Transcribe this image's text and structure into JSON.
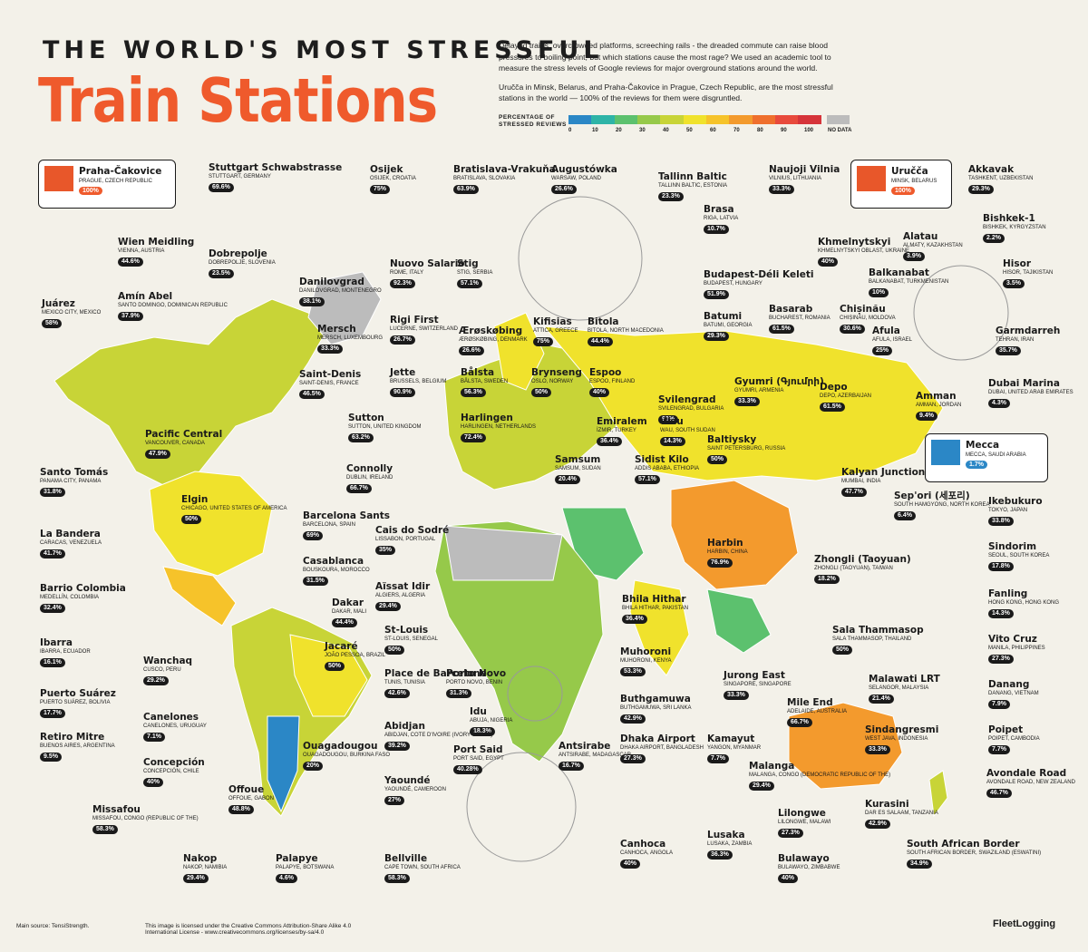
{
  "header": {
    "title_top": "THE WORLD'S MOST STRESSFUL",
    "title_main": "Train Stations",
    "intro1": "Delayed trains, overcrowded platforms, screeching rails - the dreaded commute can raise blood pressures to boiling point, but which stations cause the most rage? We used an academic tool to measure the stress levels of Google reviews for major overground stations around the world.",
    "intro2": "Uručča in Minsk, Belarus, and Praha-Čakovice in Prague, Czech Republic, are the most stressful stations in the world — 100% of the reviews for them were disgruntled."
  },
  "legend": {
    "label": "PERCENTAGE OF STRESSED REVIEWS",
    "ticks": [
      "0",
      "10",
      "20",
      "30",
      "40",
      "50",
      "60",
      "70",
      "80",
      "90",
      "100",
      "NO DATA"
    ],
    "colors": [
      "#2b87c6",
      "#2eb4a7",
      "#5cc16e",
      "#96c94a",
      "#c8d437",
      "#f0e22c",
      "#f6c32a",
      "#f39a2d",
      "#ef6f2d",
      "#e84a3c",
      "#d6343a",
      "#bcbcbc"
    ]
  },
  "highlights": [
    {
      "name": "Praha-Čakovice",
      "loc": "PRAGUE, CZECH REPUBLIC",
      "value": "100%"
    },
    {
      "name": "Uručča",
      "loc": "MINSK, BELARUS",
      "value": "100%"
    },
    {
      "name": "Mecca",
      "loc": "MECCA, SAUDI ARABIA",
      "value": "1.7%"
    }
  ],
  "stations": [
    {
      "name": "Stuttgart Schwabstrasse",
      "loc": "STUTTGART, GERMANY",
      "value": "69.6%"
    },
    {
      "name": "Osijek",
      "loc": "OSIJEK, CROATIA",
      "value": "75%"
    },
    {
      "name": "Bratislava-Vrakuňa",
      "loc": "BRATISLAVA, SLOVAKIA",
      "value": "63.9%"
    },
    {
      "name": "Augustówka",
      "loc": "WARSAW, POLAND",
      "value": "26.6%"
    },
    {
      "name": "Tallinn Baltic",
      "loc": "TALLINN BALTIC, ESTONIA",
      "value": "23.3%"
    },
    {
      "name": "Naujoji Vilnia",
      "loc": "VILNIUS, LITHUANIA",
      "value": "33.3%"
    },
    {
      "name": "Akkavak",
      "loc": "TASHKENT, UZBEKISTAN",
      "value": "29.3%"
    },
    {
      "name": "Brasa",
      "loc": "RIGA, LATVIA",
      "value": "10.7%"
    },
    {
      "name": "Bishkek-1",
      "loc": "BISHKEK, KYRGYZSTAN",
      "value": "2.2%"
    },
    {
      "name": "Wien Meidling",
      "loc": "VIENNA, AUSTRIA",
      "value": "44.6%"
    },
    {
      "name": "Dobrepolje",
      "loc": "DOBREPOLJE, SLOVENIA",
      "value": "23.5%"
    },
    {
      "name": "Nuovo Salario",
      "loc": "ROME, ITALY",
      "value": "92.3%"
    },
    {
      "name": "Stig",
      "loc": "STIG, SERBIA",
      "value": "57.1%"
    },
    {
      "name": "Khmelnytskyi",
      "loc": "KHMELNYTSKYI OBLAST, UKRAINE",
      "value": "40%"
    },
    {
      "name": "Alatau",
      "loc": "ALMATY, KAZAKHSTAN",
      "value": "3.9%"
    },
    {
      "name": "Hisor",
      "loc": "HISOR, TAJIKISTAN",
      "value": "3.5%"
    },
    {
      "name": "Budapest-Déli Keleti",
      "loc": "BUDAPEST, HUNGARY",
      "value": "51.9%"
    },
    {
      "name": "Balkanabat",
      "loc": "BALKANABAT, TURKMENISTAN",
      "value": "10%"
    },
    {
      "name": "Juárez",
      "loc": "MEXICO CITY, MEXICO",
      "value": "58%"
    },
    {
      "name": "Amín Abel",
      "loc": "SANTO DOMINGO, DOMINICAN REPUBLIC",
      "value": "37.9%"
    },
    {
      "name": "Danilovgrad",
      "loc": "DANILOVGRAD, MONTENEGRO",
      "value": "38.1%"
    },
    {
      "name": "Basarab",
      "loc": "BUCHAREST, ROMANIA",
      "value": "61.5%"
    },
    {
      "name": "Chișinău",
      "loc": "CHIȘINĂU, MOLDOVA",
      "value": "30.6%"
    },
    {
      "name": "Garmdarreh",
      "loc": "TEHRAN, IRAN",
      "value": "35.7%"
    },
    {
      "name": "Batumi",
      "loc": "BATUMI, GEORGIA",
      "value": "29.3%"
    },
    {
      "name": "Rigi First",
      "loc": "LUCERNE, SWITZERLAND",
      "value": "26.7%"
    },
    {
      "name": "Ærøskøbing",
      "loc": "ÆRØSKØBING, DENMARK",
      "value": "26.6%"
    },
    {
      "name": "Kifisias",
      "loc": "ATTICA, GREECE",
      "value": "75%"
    },
    {
      "name": "Bitola",
      "loc": "BITOLA, NORTH MACEDONIA",
      "value": "44.4%"
    },
    {
      "name": "Afula",
      "loc": "AFULA, ISRAEL",
      "value": "25%"
    },
    {
      "name": "Mersch",
      "loc": "MERSCH, LUXEMBOURG",
      "value": "33.3%"
    },
    {
      "name": "Jette",
      "loc": "BRUSSELS, BELGIUM",
      "value": "90.9%"
    },
    {
      "name": "Bålsta",
      "loc": "BÅLSTA, SWEDEN",
      "value": "56.3%"
    },
    {
      "name": "Brynseng",
      "loc": "OSLO, NORWAY",
      "value": "50%"
    },
    {
      "name": "Espoo",
      "loc": "ESPOO, FINLAND",
      "value": "40%"
    },
    {
      "name": "Svilengrad",
      "loc": "SVILENGRAD, BULGARIA",
      "value": "90%"
    },
    {
      "name": "Gyumri (Գյումրի)",
      "loc": "GYUMRI, ARMENIA",
      "value": "33.3%"
    },
    {
      "name": "Depo",
      "loc": "DEPO, AZERBAIJAN",
      "value": "61.5%"
    },
    {
      "name": "Amman",
      "loc": "AMMAN, JORDAN",
      "value": "9.4%"
    },
    {
      "name": "Dubai Marina",
      "loc": "DUBAI, UNITED ARAB EMIRATES",
      "value": "4.3%"
    },
    {
      "name": "Saint-Denis",
      "loc": "SAINT-DENIS, FRANCE",
      "value": "46.5%"
    },
    {
      "name": "Harlingen",
      "loc": "HARLINGEN, NETHERLANDS",
      "value": "72.4%"
    },
    {
      "name": "Emiralem",
      "loc": "İZMIR, TURKEY",
      "value": "36.4%"
    },
    {
      "name": "Wau",
      "loc": "WAU, SOUTH SUDAN",
      "value": "14.3%"
    },
    {
      "name": "Baltiysky",
      "loc": "SAINT PETERSBURG, RUSSIA",
      "value": "50%"
    },
    {
      "name": "Pacific Central",
      "loc": "VANCOUVER, CANADA",
      "value": "47.9%"
    },
    {
      "name": "Sutton",
      "loc": "SUTTON, UNITED KINGDOM",
      "value": "63.2%"
    },
    {
      "name": "Samsum",
      "loc": "SAMSUM, SUDAN",
      "value": "20.4%"
    },
    {
      "name": "Sidist Kilo",
      "loc": "ADDIS ABABA, ETHIOPIA",
      "value": "57.1%"
    },
    {
      "name": "Connolly",
      "loc": "DUBLIN, IRELAND",
      "value": "66.7%"
    },
    {
      "name": "Kalyan Junction",
      "loc": "MUMBAI, INDIA",
      "value": "47.7%"
    },
    {
      "name": "Sep'ori (세포리)",
      "loc": "SOUTH HAMGYONG, NORTH KOREA",
      "value": "6.4%"
    },
    {
      "name": "Santo Tomás",
      "loc": "PANAMA CITY, PANAMA",
      "value": "31.8%"
    },
    {
      "name": "Elgin",
      "loc": "CHICAGO, UNITED STATES OF AMERICA",
      "value": "50%"
    },
    {
      "name": "Barcelona Sants",
      "loc": "BARCELONA, SPAIN",
      "value": "69%"
    },
    {
      "name": "Cais do Sodré",
      "loc": "LISSABON, PORTUGAL",
      "value": "35%"
    },
    {
      "name": "Ikebukuro",
      "loc": "TOKYO, JAPAN",
      "value": "33.8%"
    },
    {
      "name": "La Bandera",
      "loc": "CARACAS, VENEZUELA",
      "value": "41.7%"
    },
    {
      "name": "Harbin",
      "loc": "HARBIN, CHINA",
      "value": "76.9%"
    },
    {
      "name": "Sindorim",
      "loc": "SEOUL, SOUTH KOREA",
      "value": "17.8%"
    },
    {
      "name": "Casablanca",
      "loc": "BOUSKOURA, MOROCCO",
      "value": "31.5%"
    },
    {
      "name": "Zhongli (Taoyuan)",
      "loc": "ZHONGLI (TAOYUAN), TAIWAN",
      "value": "18.2%"
    },
    {
      "name": "Barrio Colombia",
      "loc": "MEDELLÍN, COLOMBIA",
      "value": "32.4%"
    },
    {
      "name": "Aïssat Idir",
      "loc": "ALGIERS, ALGERIA",
      "value": "29.4%"
    },
    {
      "name": "Fanling",
      "loc": "HONG KONG, HONG KONG",
      "value": "14.3%"
    },
    {
      "name": "Dakar",
      "loc": "DAKAR, MALI",
      "value": "44.4%"
    },
    {
      "name": "Bhila Hithar",
      "loc": "BHILA HITHAR, PAKISTAN",
      "value": "36.4%"
    },
    {
      "name": "Ibarra",
      "loc": "IBARRA, ECUADOR",
      "value": "16.1%"
    },
    {
      "name": "St-Louis",
      "loc": "ST-LOUIS, SENEGAL",
      "value": "50%"
    },
    {
      "name": "Sala Thammasop",
      "loc": "SALA THAMMASOP, THAILAND",
      "value": "50%"
    },
    {
      "name": "Vito Cruz",
      "loc": "MANILA, PHILIPPINES",
      "value": "27.3%"
    },
    {
      "name": "Wanchaq",
      "loc": "CUSCO, PERU",
      "value": "29.2%"
    },
    {
      "name": "Jacaré",
      "loc": "JOÃO PESSOA, BRAZIL",
      "value": "50%"
    },
    {
      "name": "Muhoroni",
      "loc": "MUHORONI, KENYA",
      "value": "53.3%"
    },
    {
      "name": "Jurong East",
      "loc": "SINGAPORE, SINGAPORE",
      "value": "33.3%"
    },
    {
      "name": "Malawati LRT",
      "loc": "SELANGOR, MALAYSIA",
      "value": "21.4%"
    },
    {
      "name": "Danang",
      "loc": "DANANG, VIETNAM",
      "value": "7.9%"
    },
    {
      "name": "Place de Barcelone",
      "loc": "TUNIS, TUNISIA",
      "value": "42.6%"
    },
    {
      "name": "Porto Novo",
      "loc": "PORTO NOVO, BENIN",
      "value": "31.3%"
    },
    {
      "name": "Puerto Suárez",
      "loc": "PUERTO SUÁREZ, BOLIVIA",
      "value": "17.7%"
    },
    {
      "name": "Buthgamuwa",
      "loc": "BUTHGAMUWA, SRI LANKA",
      "value": "42.9%"
    },
    {
      "name": "Mile End",
      "loc": "ADELAIDE, AUSTRALIA",
      "value": "66.7%"
    },
    {
      "name": "Canelones",
      "loc": "CANELONES, URUGUAY",
      "value": "7.1%"
    },
    {
      "name": "Idu",
      "loc": "ABUJA, NIGERIA",
      "value": "18.3%"
    },
    {
      "name": "Poipet",
      "loc": "POIPET, CAMBODIA",
      "value": "7.7%"
    },
    {
      "name": "Sindangresmi",
      "loc": "WEST JAVA, INDONESIA",
      "value": "33.3%"
    },
    {
      "name": "Abidjan",
      "loc": "ABIDJAN, COTE D'IVOIRE (IVORY COAST)",
      "value": "39.2%"
    },
    {
      "name": "Antsirabe",
      "loc": "ANTSIRABE, MADAGASCAR",
      "value": "16.7%"
    },
    {
      "name": "Dhaka Airport",
      "loc": "DHAKA AIRPORT, BANGLADESH",
      "value": "27.3%"
    },
    {
      "name": "Kamayut",
      "loc": "YANGON, MYANMAR",
      "value": "7.7%"
    },
    {
      "name": "Retiro Mitre",
      "loc": "BUENOS AIRES, ARGENTINA",
      "value": "9.5%"
    },
    {
      "name": "Ouagadougou",
      "loc": "OUAGADOUGOU, BURKINA FASO",
      "value": "20%"
    },
    {
      "name": "Port Said",
      "loc": "PORT SAID, EGYPT",
      "value": "40.28%"
    },
    {
      "name": "Avondale Road",
      "loc": "AVONDALE ROAD, NEW ZEALAND",
      "value": "46.7%"
    },
    {
      "name": "Concepción",
      "loc": "CONCEPCIÓN, CHILE",
      "value": "40%"
    },
    {
      "name": "Yaoundé",
      "loc": "YAOUNDÉ, CAMEROON",
      "value": "27%"
    },
    {
      "name": "Malanga",
      "loc": "MALANGA, CONGO (DEMOCRATIC REPUBLIC OF THE)",
      "value": "29.4%"
    },
    {
      "name": "Offoue",
      "loc": "OFFOUE, GABON",
      "value": "48.8%"
    },
    {
      "name": "Kurasini",
      "loc": "DAR ES SALAAM, TANZANIA",
      "value": "42.9%"
    },
    {
      "name": "Missafou",
      "loc": "MISSAFOU, CONGO (REPUBLIC OF THE)",
      "value": "58.3%"
    },
    {
      "name": "Lilongwe",
      "loc": "LILONGWE, MALAWI",
      "value": "27.3%"
    },
    {
      "name": "Lusaka",
      "loc": "LUSAKA, ZAMBIA",
      "value": "36.3%"
    },
    {
      "name": "Canhoca",
      "loc": "CANHOCA, ANGOLA",
      "value": "40%"
    },
    {
      "name": "Nakop",
      "loc": "NAKOP, NAMIBIA",
      "value": "29.4%"
    },
    {
      "name": "Palapye",
      "loc": "PALAPYE, BOTSWANA",
      "value": "4.6%"
    },
    {
      "name": "Bellville",
      "loc": "CAPE TOWN, SOUTH AFRICA",
      "value": "58.3%"
    },
    {
      "name": "Bulawayo",
      "loc": "BULAWAYO, ZIMBABWE",
      "value": "40%"
    },
    {
      "name": "South African Border",
      "loc": "SOUTH AFRICAN BORDER, SWAZILAND (ESWATINI)",
      "value": "34.9%"
    }
  ],
  "footer": {
    "source": "Main source: TensiStrength.",
    "license": "This image is licensed under the Creative Commons Attribution-Share Alike 4.0 International License - www.creativecommons.org/licenses/by-sa/4.0",
    "brand": "FleetLogging"
  }
}
